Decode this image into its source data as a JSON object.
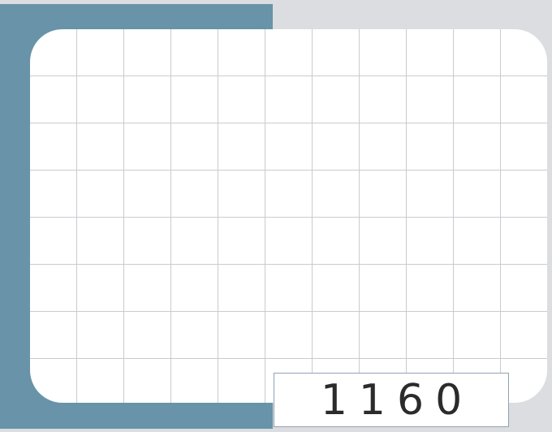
{
  "counter": {
    "value": "1160"
  },
  "colors": {
    "background": "#dcdde0",
    "accent_panel": "#6893a8",
    "card": "#ffffff",
    "grid_line": "#c9cbcf",
    "counter_border": "#8fa3b4",
    "counter_text": "#2b2b2b"
  }
}
